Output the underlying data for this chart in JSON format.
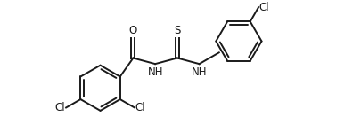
{
  "bg_color": "#ffffff",
  "line_color": "#1a1a1a",
  "line_width": 1.4,
  "font_size": 8.5,
  "figsize": [
    4.06,
    1.58
  ],
  "dpi": 100,
  "xlim": [
    0.0,
    8.5
  ],
  "ylim": [
    -1.5,
    3.0
  ]
}
